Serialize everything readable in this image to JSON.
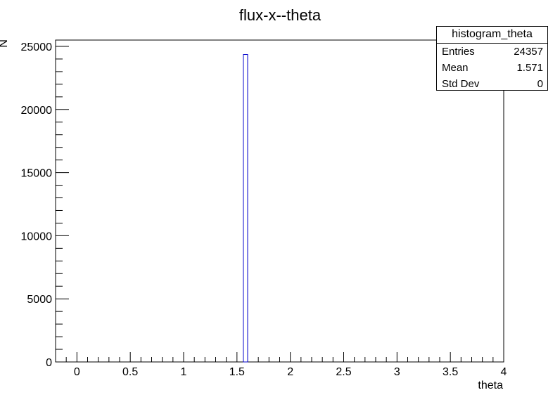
{
  "chart_data": {
    "type": "bar",
    "title": "flux-x--theta",
    "xlabel": "theta",
    "ylabel": "N",
    "xlim": [
      -0.2,
      4.0
    ],
    "ylim": [
      0,
      25500
    ],
    "x_ticks": [
      "0",
      "0.5",
      "1",
      "1.5",
      "2",
      "2.5",
      "3",
      "3.5",
      "4"
    ],
    "y_ticks": [
      "0",
      "5000",
      "10000",
      "15000",
      "20000",
      "25000"
    ],
    "bins": [
      {
        "x_low": 1.56,
        "x_high": 1.6,
        "value": 24357
      }
    ],
    "line_color": "#0000cc",
    "grid": false,
    "stats": {
      "name": "histogram_theta",
      "rows": [
        {
          "label": "Entries",
          "value": "24357"
        },
        {
          "label": "Mean",
          "value": "1.571"
        },
        {
          "label": "Std Dev",
          "value": "0"
        }
      ]
    }
  }
}
